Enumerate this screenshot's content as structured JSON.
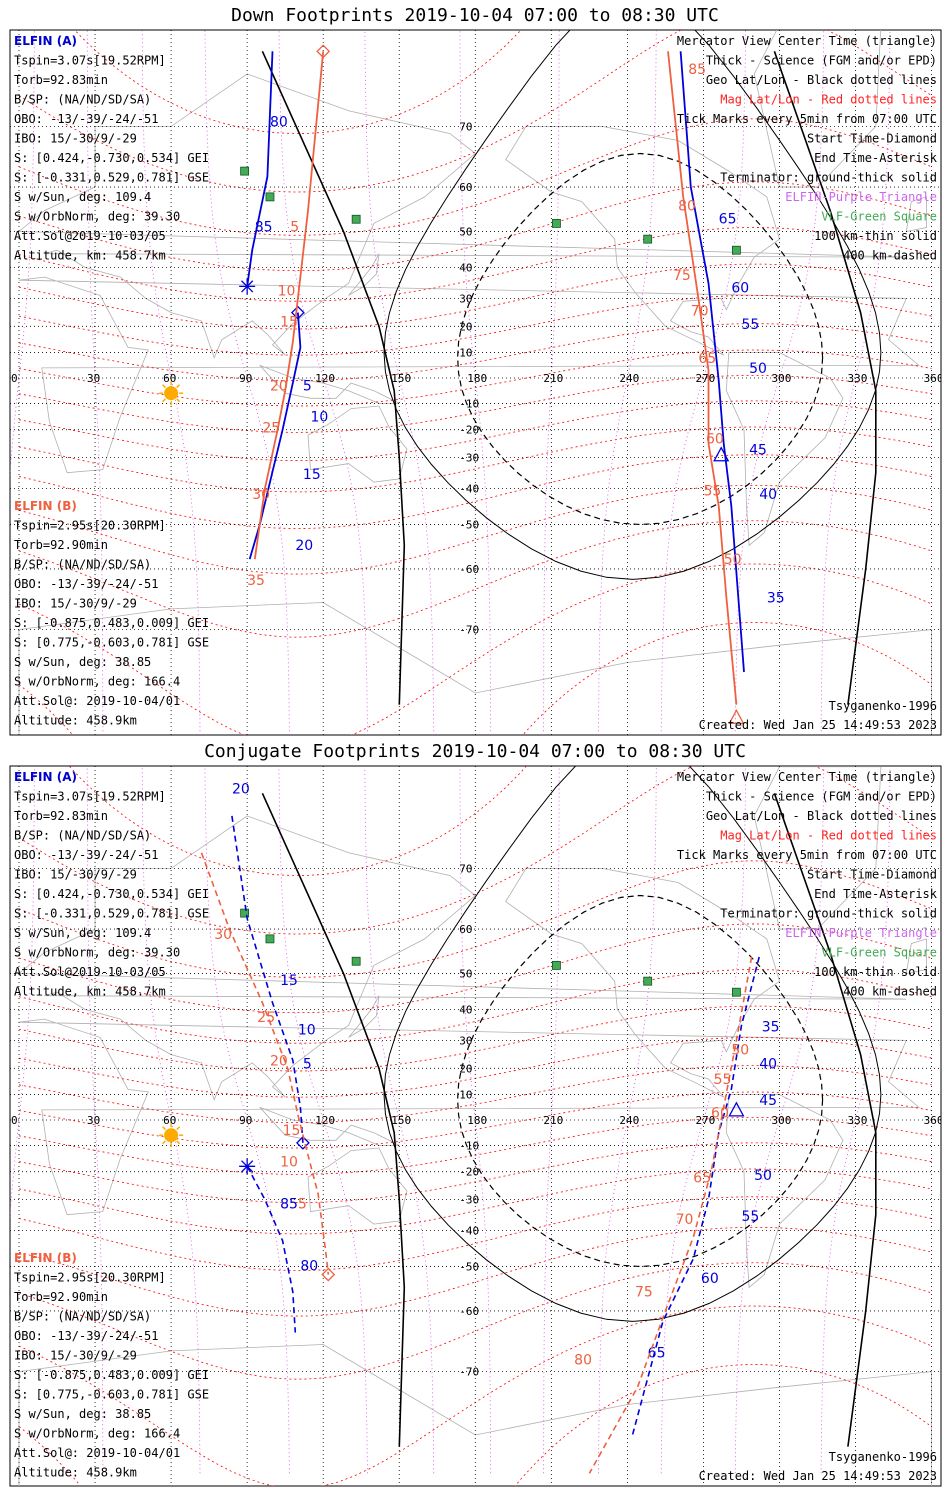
{
  "panels": [
    {
      "title": "Down Footprints 2019-10-04 07:00 to 08:30 UTC",
      "left_a": {
        "header": "ELFIN (A)",
        "lines": [
          "Tspin=3.07s[19.52RPM]",
          "Torb=92.83min",
          "B/SP: (NA/ND/SD/SA)",
          "OBO: -13/-39/-24/-51",
          "IBO: 15/-30/9/-29",
          "S: [0.424,-0.730,0.534] GEI",
          "S: [-0.331,0.529,0.781] GSE",
          "S w/Sun, deg: 109.4",
          "S w/OrbNorm, deg: 39.30",
          "Att.Sol@2019-10-03/05",
          "Altitude, km: 458.7km"
        ]
      },
      "left_b": {
        "header": "ELFIN (B)",
        "lines": [
          "Tspin=2.95s[20.30RPM]",
          "Torb=92.90min",
          "B/SP: (NA/ND/SD/SA)",
          "OBO: -13/-39/-24/-51",
          "IBO: 15/-30/9/-29",
          "S: [-0.875,0.483,0.009] GEI",
          "S: [0.775,-0.603,0.781] GSE",
          "S w/Sun, deg: 38.85",
          "S w/OrbNorm, deg: 166.4",
          "Att.Sol@: 2019-10-04/01",
          "Altitude: 458.9km"
        ]
      },
      "legend": [
        "Mercator View Center Time (triangle)",
        "Thick - Science (FGM and/or EPD)",
        "Geo Lat/Lon - Black dotted lines",
        "Mag Lat/Lon - Red dotted lines",
        "Tick Marks every 5min from 07:00 UTC",
        "Start Time-Diamond",
        "End Time-Asterisk",
        "Terminator: ground-thick solid",
        "ELFIN-Purple Triangle",
        "VLF-Green Square",
        "100 km-thin solid",
        "400 km-dashed"
      ],
      "model": "Tsyganenko-1996",
      "created": "Created: Wed Jan 25 14:49:53 2023"
    },
    {
      "title": "Conjugate Footprints 2019-10-04 07:00 to 08:30 UTC",
      "left_a": {
        "header": "ELFIN (A)",
        "lines": [
          "Tspin=3.07s[19.52RPM]",
          "Torb=92.83min",
          "B/SP: (NA/ND/SD/SA)",
          "OBO: -13/-39/-24/-51",
          "IBO: 15/-30/9/-29",
          "S: [0.424,-0.730,0.534] GEI",
          "S: [-0.331,0.529,0.781] GSE",
          "S w/Sun, deg: 109.4",
          "S w/OrbNorm, deg: 39.30",
          "Att.Sol@2019-10-03/05",
          "Altitude, km: 458.7km"
        ]
      },
      "left_b": {
        "header": "ELFIN (B)",
        "lines": [
          "Tspin=2.95s[20.30RPM]",
          "Torb=92.90min",
          "B/SP: (NA/ND/SD/SA)",
          "OBO: -13/-39/-24/-51",
          "IBO: 15/-30/9/-29",
          "S: [-0.875,0.483,0.009] GEI",
          "S: [0.775,-0.603,0.781] GSE",
          "S w/Sun, deg: 38.85",
          "S w/OrbNorm, deg: 166.4",
          "Att.Sol@: 2019-10-04/01",
          "Altitude: 458.9km"
        ]
      },
      "legend": [
        "Mercator View Center Time (triangle)",
        "Thick - Science (FGM and/or EPD)",
        "Geo Lat/Lon - Black dotted lines",
        "Mag Lat/Lon - Red dotted lines",
        "Tick Marks every 5min from 07:00 UTC",
        "Start Time-Diamond",
        "End Time-Asterisk",
        "Terminator: ground-thick solid",
        "ELFIN-Purple Triangle",
        "VLF-Green Square",
        "100 km-thin solid",
        "400 km-dashed"
      ],
      "model": "Tsyganenko-1996",
      "created": "Created: Wed Jan 25 14:49:53 2023"
    }
  ],
  "colors": {
    "elfin_a": "#0000dd",
    "elfin_b": "#ee6040",
    "mag_grid": "#ff0000",
    "geo_grid": "#000000",
    "meridians": "#dd44dd",
    "vlf": "#44aa55",
    "legend_mag": "#ff2020",
    "legend_purple": "#cc66ee",
    "legend_green": "#44aa55",
    "sun": "#ffaa00"
  },
  "chart_data": [
    {
      "type": "scatter",
      "title": "Down Footprints 2019-10-04 07:00 to 08:30 UTC",
      "projection": "Mercator",
      "lon_ticks": [
        0,
        30,
        60,
        90,
        120,
        150,
        180,
        210,
        240,
        270,
        300,
        330,
        360
      ],
      "lat_ticks": [
        70,
        60,
        50,
        40,
        30,
        20,
        10,
        0,
        -10,
        -20,
        -30,
        -40,
        -50,
        -60,
        -70
      ],
      "xlim": [
        0,
        360
      ],
      "ylim": [
        -78,
        78
      ],
      "grid": true,
      "legend_position": "top-right",
      "sun": {
        "lon": 60,
        "lat": -6
      },
      "vlf_stations": [
        [
          89,
          63
        ],
        [
          99,
          58
        ],
        [
          133,
          53
        ],
        [
          212,
          52
        ],
        [
          248,
          48
        ],
        [
          283,
          45
        ]
      ],
      "series": [
        {
          "name": "ELFIN (A)",
          "style": "solid",
          "tracks": [
            {
              "points": [
                [
                  100,
                  78
                ],
                [
                  98,
                  62
                ],
                [
                  92,
                  45
                ],
                [
                  90,
                  34
                ]
              ],
              "ticks": [
                [
                  99,
                  70,
                  "80"
                ],
                [
                  93,
                  50,
                  "85"
                ]
              ],
              "start": [
                110,
                25
              ],
              "end": [
                90,
                34
              ]
            },
            {
              "points": [
                [
                  110,
                  25
                ],
                [
                  111,
                  12
                ],
                [
                  108,
                  -2
                ],
                [
                  104,
                  -20
                ],
                [
                  99,
                  -38
                ],
                [
                  95,
                  -50
                ],
                [
                  91,
                  -58
                ]
              ],
              "ticks": [
                [
                  112,
                  -5,
                  "5"
                ],
                [
                  115,
                  -17,
                  "10"
                ],
                [
                  112,
                  -37,
                  "15"
                ],
                [
                  109,
                  -56,
                  "20"
                ]
              ]
            },
            {
              "points": [
                [
                  261,
                  78
                ],
                [
                  265,
                  60
                ],
                [
                  272,
                  35
                ],
                [
                  276,
                  -1
                ],
                [
                  278,
                  -25
                ],
                [
                  281,
                  -45
                ],
                [
                  286,
                  -75
                ]
              ],
              "ticks": [
                [
                  276,
                  52,
                  "65"
                ],
                [
                  281,
                  32,
                  "60"
                ],
                [
                  285,
                  19,
                  "55"
                ],
                [
                  288,
                  2,
                  "50"
                ],
                [
                  288,
                  -29,
                  "45"
                ],
                [
                  292,
                  -43,
                  "40"
                ],
                [
                  295,
                  -66,
                  "35"
                ]
              ],
              "triangle": [
                277,
                -29
              ]
            }
          ]
        },
        {
          "name": "ELFIN (B)",
          "style": "solid",
          "tracks": [
            {
              "points": [
                [
                  120,
                  78
                ],
                [
                  114,
                  55
                ],
                [
                  110,
                  30
                ],
                [
                  108,
                  14
                ],
                [
                  105,
                  -5
                ],
                [
                  102,
                  -20
                ],
                [
                  97,
                  -40
                ],
                [
                  93,
                  -58
                ]
              ],
              "ticks": [
                [
                  107,
                  50,
                  "5"
                ],
                [
                  102,
                  31,
                  "10"
                ],
                [
                  103,
                  20,
                  "15"
                ],
                [
                  99,
                  -5,
                  "20"
                ],
                [
                  96,
                  -21,
                  "25"
                ],
                [
                  92,
                  -43,
                  "30"
                ],
                [
                  90,
                  -63,
                  "35"
                ]
              ],
              "start": [
                120,
                78
              ]
            },
            {
              "points": [
                [
                  256,
                  78
                ],
                [
                  262,
                  58
                ],
                [
                  268,
                  30
                ],
                [
                  272,
                  3
                ],
                [
                  272,
                  -25
                ],
                [
                  276,
                  -45
                ],
                [
                  279,
                  -65
                ],
                [
                  283,
                  -78
                ]
              ],
              "ticks": [
                [
                  264,
                  76,
                  "85"
                ],
                [
                  260,
                  55,
                  "80"
                ],
                [
                  258,
                  36,
                  "75"
                ],
                [
                  265,
                  24,
                  "70"
                ],
                [
                  268,
                  6,
                  "65"
                ],
                [
                  271,
                  -25,
                  "60"
                ],
                [
                  270,
                  -42,
                  "55"
                ],
                [
                  278,
                  -59,
                  "50"
                ]
              ],
              "triangle": [
                283,
                -79
              ]
            }
          ]
        }
      ]
    },
    {
      "type": "scatter",
      "title": "Conjugate Footprints 2019-10-04 07:00 to 08:30 UTC",
      "projection": "Mercator",
      "lon_ticks": [
        0,
        30,
        60,
        90,
        120,
        150,
        180,
        210,
        240,
        270,
        300,
        330,
        360
      ],
      "lat_ticks": [
        70,
        60,
        50,
        40,
        30,
        20,
        10,
        0,
        -10,
        -20,
        -30,
        -40,
        -50,
        -60,
        -70
      ],
      "xlim": [
        0,
        360
      ],
      "ylim": [
        -78,
        78
      ],
      "grid": true,
      "legend_position": "top-right",
      "sun": {
        "lon": 60,
        "lat": -6
      },
      "vlf_stations": [
        [
          89,
          63
        ],
        [
          99,
          58
        ],
        [
          133,
          53
        ],
        [
          212,
          52
        ],
        [
          248,
          48
        ],
        [
          283,
          45
        ]
      ],
      "series": [
        {
          "name": "ELFIN (A)",
          "style": "dashed",
          "tracks": [
            {
              "points": [
                [
                  84,
                  76
                ],
                [
                  90,
                  62
                ],
                [
                  100,
                  42
                ],
                [
                  108,
                  23
                ],
                [
                  111,
                  5
                ],
                [
                  112,
                  -9
                ]
              ],
              "ticks": [
                [
                  84,
                  78,
                  "20"
                ],
                [
                  103,
                  47,
                  "15"
                ],
                [
                  110,
                  32,
                  "10"
                ],
                [
                  112,
                  20,
                  "5"
                ]
              ],
              "start": [
                112,
                -9
              ]
            },
            {
              "points": [
                [
                  90,
                  -18
                ],
                [
                  97,
                  -30
                ],
                [
                  104,
                  -43
                ],
                [
                  108,
                  -56
                ],
                [
                  109,
                  -64
                ]
              ],
              "ticks": [
                [
                  103,
                  -33,
                  "85"
                ],
                [
                  111,
                  -51,
                  "80"
                ]
              ],
              "end": [
                90,
                -18
              ]
            },
            {
              "points": [
                [
                  292,
                  54
                ],
                [
                  285,
                  35
                ],
                [
                  281,
                  12
                ],
                [
                  276,
                  -5
                ],
                [
                  272,
                  -30
                ],
                [
                  266,
                  -48
                ],
                [
                  254,
                  -62
                ],
                [
                  242,
                  -77
                ]
              ],
              "ticks": [
                [
                  293,
                  33,
                  "35"
                ],
                [
                  292,
                  20,
                  "40"
                ],
                [
                  292,
                  6,
                  "45"
                ],
                [
                  290,
                  -23,
                  "50"
                ],
                [
                  285,
                  -37,
                  "55"
                ],
                [
                  269,
                  -54,
                  "60"
                ],
                [
                  248,
                  -68,
                  "65"
                ]
              ],
              "triangle": [
                283,
                4
              ]
            }
          ]
        },
        {
          "name": "ELFIN (B)",
          "style": "dashed",
          "tracks": [
            {
              "points": [
                [
                  72,
                  72
                ],
                [
                  83,
                  60
                ],
                [
                  96,
                  42
                ],
                [
                  106,
                  20
                ],
                [
                  110,
                  2
                ],
                [
                  113,
                  -10
                ],
                [
                  118,
                  -28
                ],
                [
                  121,
                  -46
                ],
                [
                  122,
                  -52
                ]
              ],
              "ticks": [
                [
                  77,
                  58,
                  "30"
                ],
                [
                  94,
                  36,
                  "25"
                ],
                [
                  99,
                  21,
                  "20"
                ],
                [
                  104,
                  -6,
                  "15"
                ],
                [
                  103,
                  -18,
                  "10"
                ],
                [
                  110,
                  -33,
                  "5"
                ]
              ],
              "start": [
                122,
                -52
              ]
            },
            {
              "points": [
                [
                  289,
                  54
                ],
                [
                  283,
                  30
                ],
                [
                  278,
                  5
                ],
                [
                  273,
                  -20
                ],
                [
                  266,
                  -42
                ],
                [
                  255,
                  -60
                ],
                [
                  244,
                  -72
                ],
                [
                  225,
                  -80
                ]
              ],
              "ticks": [
                [
                  281,
                  25,
                  "50"
                ],
                [
                  274,
                  14,
                  "55"
                ],
                [
                  273,
                  1,
                  "60"
                ],
                [
                  266,
                  -24,
                  "65"
                ],
                [
                  259,
                  -38,
                  "70"
                ],
                [
                  243,
                  -57,
                  "75"
                ],
                [
                  219,
                  -69,
                  "80"
                ]
              ]
            }
          ]
        }
      ]
    }
  ]
}
